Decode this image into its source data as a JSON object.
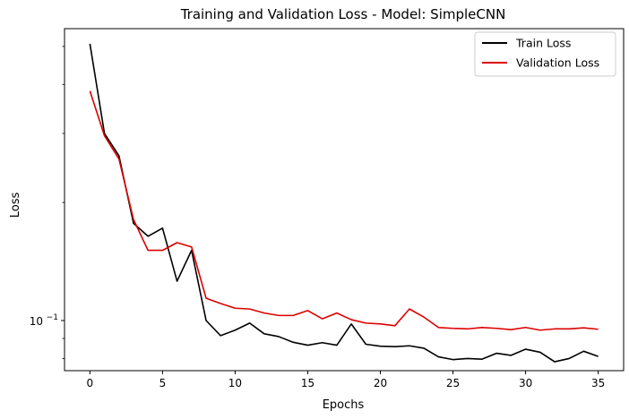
{
  "chart_data": {
    "type": "line",
    "title": "Training and Validation Loss - Model: SimpleCNN",
    "xlabel": "Epochs",
    "ylabel": "Loss",
    "yscale": "log",
    "xlim": [
      -1.75,
      36.75
    ],
    "ylim": [
      0.0745,
      0.555
    ],
    "x_ticks": [
      0,
      5,
      10,
      15,
      20,
      25,
      30,
      35
    ],
    "y_ticks": [
      {
        "value": 0.1,
        "label_base": "10",
        "label_exp": "−1"
      }
    ],
    "y_minor_ticks": [
      0.08,
      0.09,
      0.2,
      0.3,
      0.4,
      0.5
    ],
    "grid": false,
    "legend_position": "top-right",
    "x": [
      0,
      1,
      2,
      3,
      4,
      5,
      6,
      7,
      8,
      9,
      10,
      11,
      12,
      13,
      14,
      15,
      16,
      17,
      18,
      19,
      20,
      21,
      22,
      23,
      24,
      25,
      26,
      27,
      28,
      29,
      30,
      31,
      32,
      33,
      34,
      35
    ],
    "series": [
      {
        "name": "Train Loss",
        "color": "#000000",
        "values": [
          0.508,
          0.3,
          0.263,
          0.177,
          0.164,
          0.172,
          0.126,
          0.151,
          0.1,
          0.0915,
          0.0945,
          0.0985,
          0.0925,
          0.091,
          0.088,
          0.0865,
          0.0878,
          0.0865,
          0.098,
          0.087,
          0.086,
          0.0858,
          0.0862,
          0.085,
          0.0808,
          0.0795,
          0.08,
          0.0797,
          0.0825,
          0.0815,
          0.0845,
          0.083,
          0.0785,
          0.08,
          0.0835,
          0.081
        ]
      },
      {
        "name": "Validation Loss",
        "color": "#dd0000",
        "values": [
          0.385,
          0.296,
          0.258,
          0.181,
          0.151,
          0.151,
          0.158,
          0.154,
          0.114,
          0.1105,
          0.1075,
          0.107,
          0.1045,
          0.103,
          0.103,
          0.106,
          0.101,
          0.1045,
          0.1005,
          0.0985,
          0.098,
          0.097,
          0.107,
          0.102,
          0.096,
          0.0955,
          0.0952,
          0.096,
          0.0955,
          0.0948,
          0.096,
          0.0945,
          0.0952,
          0.0952,
          0.0958,
          0.095
        ]
      }
    ]
  }
}
